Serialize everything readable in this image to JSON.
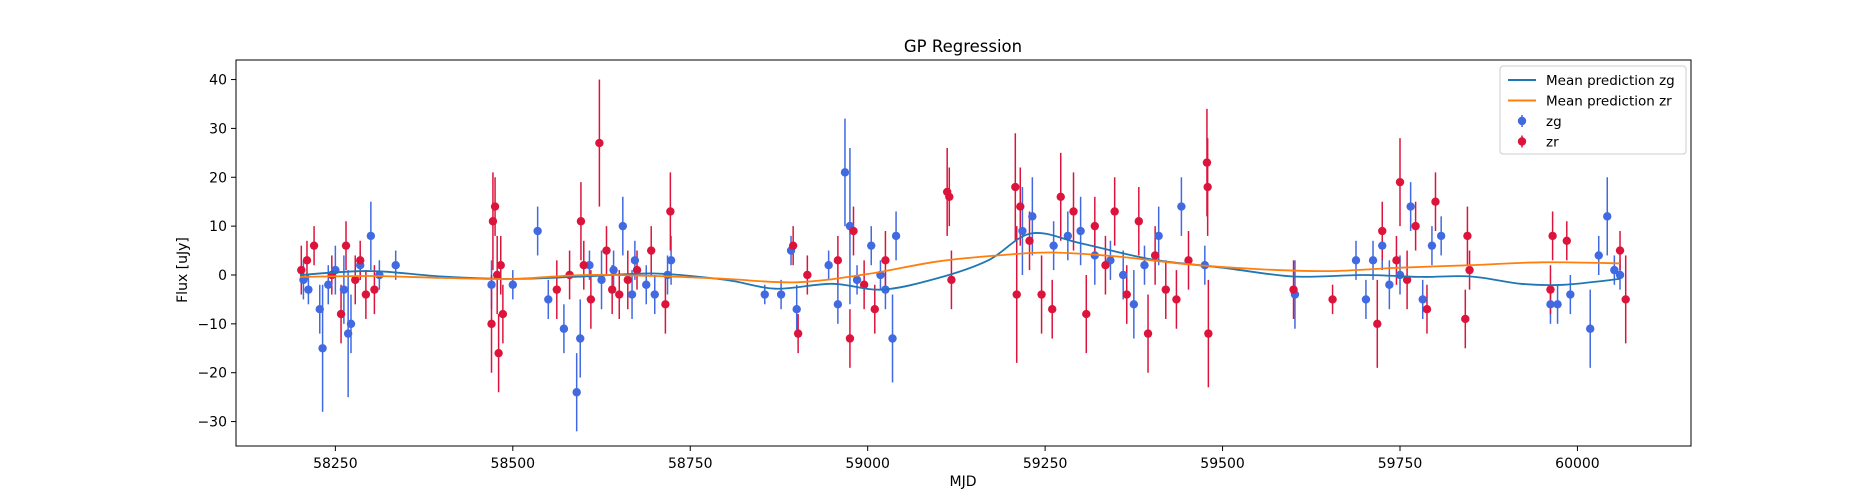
{
  "chart_data": {
    "type": "scatter",
    "title": "GP Regression",
    "xlabel": "MJD",
    "ylabel": "Flux [uJy]",
    "xlim": [
      58110,
      60160
    ],
    "ylim": [
      -35,
      44
    ],
    "xticks": [
      58250,
      58500,
      58750,
      59000,
      59250,
      59500,
      59750,
      60000
    ],
    "yticks": [
      -30,
      -20,
      -10,
      0,
      10,
      20,
      30,
      40
    ],
    "legend_position": "top-right",
    "grid": false,
    "lines": [
      {
        "name": "Mean prediction zg",
        "color": "#1f77b4",
        "x": [
          58200,
          58300,
          58400,
          58500,
          58600,
          58700,
          58800,
          58870,
          58950,
          59020,
          59100,
          59170,
          59230,
          59300,
          59400,
          59500,
          59600,
          59700,
          59780,
          59850,
          59920,
          59980,
          60060
        ],
        "y": [
          0.0,
          0.8,
          -0.3,
          -0.8,
          -0.3,
          0.3,
          -1.0,
          -2.8,
          -1.8,
          -3.0,
          -0.6,
          3.0,
          8.5,
          6.5,
          3.2,
          1.5,
          -0.3,
          0.0,
          -0.4,
          -0.3,
          -1.8,
          -2.0,
          -0.8
        ]
      },
      {
        "name": "Mean prediction zr",
        "color": "#ff7f0e",
        "x": [
          58200,
          58300,
          58400,
          58500,
          58600,
          58700,
          58800,
          58900,
          59000,
          59100,
          59200,
          59260,
          59350,
          59450,
          59550,
          59650,
          59750,
          59850,
          59950,
          60060
        ],
        "y": [
          -0.4,
          -0.2,
          -0.6,
          -0.8,
          0.0,
          -0.2,
          -0.8,
          -1.5,
          0.2,
          2.8,
          4.2,
          4.6,
          3.8,
          2.2,
          1.2,
          0.8,
          1.5,
          2.0,
          2.6,
          2.4
        ]
      }
    ],
    "series": [
      {
        "name": "zg",
        "color": "#4169e1",
        "points": [
          {
            "x": 58205,
            "y": -1,
            "err": 4
          },
          {
            "x": 58212,
            "y": -3,
            "err": 3
          },
          {
            "x": 58228,
            "y": -7,
            "err": 5
          },
          {
            "x": 58232,
            "y": -15,
            "err": 13
          },
          {
            "x": 58240,
            "y": -2,
            "err": 4
          },
          {
            "x": 58250,
            "y": 1,
            "err": 5
          },
          {
            "x": 58262,
            "y": -3,
            "err": 7
          },
          {
            "x": 58268,
            "y": -12,
            "err": 13
          },
          {
            "x": 58272,
            "y": -10,
            "err": 6
          },
          {
            "x": 58285,
            "y": 2,
            "err": 3
          },
          {
            "x": 58300,
            "y": 8,
            "err": 7
          },
          {
            "x": 58312,
            "y": 0,
            "err": 3
          },
          {
            "x": 58335,
            "y": 2,
            "err": 3
          },
          {
            "x": 58470,
            "y": -2,
            "err": 5
          },
          {
            "x": 58500,
            "y": -2,
            "err": 3
          },
          {
            "x": 58535,
            "y": 9,
            "err": 5
          },
          {
            "x": 58550,
            "y": -5,
            "err": 4
          },
          {
            "x": 58572,
            "y": -11,
            "err": 5
          },
          {
            "x": 58590,
            "y": -24,
            "err": 8
          },
          {
            "x": 58595,
            "y": -13,
            "err": 8
          },
          {
            "x": 58608,
            "y": 2,
            "err": 3
          },
          {
            "x": 58625,
            "y": -1,
            "err": 6
          },
          {
            "x": 58642,
            "y": 1,
            "err": 4
          },
          {
            "x": 58655,
            "y": 10,
            "err": 6
          },
          {
            "x": 58668,
            "y": -4,
            "err": 5
          },
          {
            "x": 58672,
            "y": 3,
            "err": 4
          },
          {
            "x": 58688,
            "y": -2,
            "err": 4
          },
          {
            "x": 58700,
            "y": -4,
            "err": 4
          },
          {
            "x": 58718,
            "y": 0,
            "err": 4
          },
          {
            "x": 58723,
            "y": 3,
            "err": 5
          },
          {
            "x": 58855,
            "y": -4,
            "err": 2
          },
          {
            "x": 58878,
            "y": -4,
            "err": 3
          },
          {
            "x": 58892,
            "y": 5,
            "err": 3
          },
          {
            "x": 58900,
            "y": -7,
            "err": 5
          },
          {
            "x": 58945,
            "y": 2,
            "err": 3
          },
          {
            "x": 58958,
            "y": -6,
            "err": 4
          },
          {
            "x": 58968,
            "y": 21,
            "err": 11
          },
          {
            "x": 58975,
            "y": 10,
            "err": 16
          },
          {
            "x": 58985,
            "y": -1,
            "err": 3
          },
          {
            "x": 59005,
            "y": 6,
            "err": 4
          },
          {
            "x": 59018,
            "y": 0,
            "err": 3
          },
          {
            "x": 59025,
            "y": -3,
            "err": 4
          },
          {
            "x": 59035,
            "y": -13,
            "err": 9
          },
          {
            "x": 59040,
            "y": 8,
            "err": 5
          },
          {
            "x": 59218,
            "y": 9,
            "err": 9
          },
          {
            "x": 59232,
            "y": 12,
            "err": 8
          },
          {
            "x": 59262,
            "y": 6,
            "err": 5
          },
          {
            "x": 59282,
            "y": 8,
            "err": 5
          },
          {
            "x": 59300,
            "y": 9,
            "err": 7
          },
          {
            "x": 59320,
            "y": 4,
            "err": 6
          },
          {
            "x": 59342,
            "y": 3,
            "err": 4
          },
          {
            "x": 59360,
            "y": 0,
            "err": 5
          },
          {
            "x": 59375,
            "y": -6,
            "err": 7
          },
          {
            "x": 59390,
            "y": 2,
            "err": 4
          },
          {
            "x": 59410,
            "y": 8,
            "err": 6
          },
          {
            "x": 59442,
            "y": 14,
            "err": 6
          },
          {
            "x": 59475,
            "y": 2,
            "err": 4
          },
          {
            "x": 59602,
            "y": -4,
            "err": 7
          },
          {
            "x": 59688,
            "y": 3,
            "err": 4
          },
          {
            "x": 59702,
            "y": -5,
            "err": 4
          },
          {
            "x": 59712,
            "y": 3,
            "err": 4
          },
          {
            "x": 59725,
            "y": 6,
            "err": 5
          },
          {
            "x": 59735,
            "y": -2,
            "err": 5
          },
          {
            "x": 59750,
            "y": 0,
            "err": 4
          },
          {
            "x": 59765,
            "y": 14,
            "err": 5
          },
          {
            "x": 59782,
            "y": -5,
            "err": 4
          },
          {
            "x": 59795,
            "y": 6,
            "err": 4
          },
          {
            "x": 59808,
            "y": 8,
            "err": 4
          },
          {
            "x": 59962,
            "y": -6,
            "err": 4
          },
          {
            "x": 59972,
            "y": -6,
            "err": 4
          },
          {
            "x": 59990,
            "y": -4,
            "err": 4
          },
          {
            "x": 60018,
            "y": -11,
            "err": 8
          },
          {
            "x": 60030,
            "y": 4,
            "err": 4
          },
          {
            "x": 60042,
            "y": 12,
            "err": 8
          },
          {
            "x": 60052,
            "y": 1,
            "err": 3
          },
          {
            "x": 60060,
            "y": 0,
            "err": 3
          }
        ]
      },
      {
        "name": "zr",
        "color": "#dc143c",
        "points": [
          {
            "x": 58202,
            "y": 1,
            "err": 5
          },
          {
            "x": 58210,
            "y": 3,
            "err": 4
          },
          {
            "x": 58220,
            "y": 6,
            "err": 4
          },
          {
            "x": 58245,
            "y": 0,
            "err": 4
          },
          {
            "x": 58258,
            "y": -8,
            "err": 6
          },
          {
            "x": 58265,
            "y": 6,
            "err": 5
          },
          {
            "x": 58278,
            "y": -1,
            "err": 5
          },
          {
            "x": 58285,
            "y": 3,
            "err": 4
          },
          {
            "x": 58293,
            "y": -4,
            "err": 5
          },
          {
            "x": 58305,
            "y": -3,
            "err": 5
          },
          {
            "x": 58470,
            "y": -10,
            "err": 10
          },
          {
            "x": 58472,
            "y": 11,
            "err": 10
          },
          {
            "x": 58475,
            "y": 14,
            "err": 6
          },
          {
            "x": 58478,
            "y": 0,
            "err": 8
          },
          {
            "x": 58480,
            "y": -16,
            "err": 8
          },
          {
            "x": 58483,
            "y": 2,
            "err": 6
          },
          {
            "x": 58486,
            "y": -8,
            "err": 6
          },
          {
            "x": 58562,
            "y": -3,
            "err": 6
          },
          {
            "x": 58580,
            "y": 0,
            "err": 5
          },
          {
            "x": 58596,
            "y": 11,
            "err": 8
          },
          {
            "x": 58600,
            "y": 2,
            "err": 5
          },
          {
            "x": 58610,
            "y": -5,
            "err": 6
          },
          {
            "x": 58622,
            "y": 27,
            "err": 13
          },
          {
            "x": 58632,
            "y": 5,
            "err": 5
          },
          {
            "x": 58640,
            "y": -3,
            "err": 5
          },
          {
            "x": 58650,
            "y": -4,
            "err": 5
          },
          {
            "x": 58662,
            "y": -1,
            "err": 6
          },
          {
            "x": 58675,
            "y": 1,
            "err": 4
          },
          {
            "x": 58695,
            "y": 5,
            "err": 5
          },
          {
            "x": 58715,
            "y": -6,
            "err": 6
          },
          {
            "x": 58722,
            "y": 13,
            "err": 8
          },
          {
            "x": 58895,
            "y": 6,
            "err": 4
          },
          {
            "x": 58902,
            "y": -12,
            "err": 4
          },
          {
            "x": 58915,
            "y": 0,
            "err": 4
          },
          {
            "x": 58958,
            "y": 3,
            "err": 5
          },
          {
            "x": 58975,
            "y": -13,
            "err": 6
          },
          {
            "x": 58980,
            "y": 9,
            "err": 5
          },
          {
            "x": 58995,
            "y": -2,
            "err": 5
          },
          {
            "x": 59010,
            "y": -7,
            "err": 5
          },
          {
            "x": 59025,
            "y": 3,
            "err": 6
          },
          {
            "x": 59112,
            "y": 17,
            "err": 9
          },
          {
            "x": 59115,
            "y": 16,
            "err": 6
          },
          {
            "x": 59118,
            "y": -1,
            "err": 6
          },
          {
            "x": 59208,
            "y": 18,
            "err": 11
          },
          {
            "x": 59210,
            "y": -4,
            "err": 14
          },
          {
            "x": 59215,
            "y": 14,
            "err": 8
          },
          {
            "x": 59228,
            "y": 7,
            "err": 6
          },
          {
            "x": 59245,
            "y": -4,
            "err": 8
          },
          {
            "x": 59260,
            "y": -7,
            "err": 6
          },
          {
            "x": 59272,
            "y": 16,
            "err": 9
          },
          {
            "x": 59290,
            "y": 13,
            "err": 8
          },
          {
            "x": 59308,
            "y": -8,
            "err": 8
          },
          {
            "x": 59320,
            "y": 10,
            "err": 6
          },
          {
            "x": 59335,
            "y": 2,
            "err": 6
          },
          {
            "x": 59348,
            "y": 13,
            "err": 7
          },
          {
            "x": 59365,
            "y": -4,
            "err": 6
          },
          {
            "x": 59382,
            "y": 11,
            "err": 7
          },
          {
            "x": 59395,
            "y": -12,
            "err": 8
          },
          {
            "x": 59405,
            "y": 4,
            "err": 6
          },
          {
            "x": 59420,
            "y": -3,
            "err": 6
          },
          {
            "x": 59435,
            "y": -5,
            "err": 6
          },
          {
            "x": 59452,
            "y": 3,
            "err": 6
          },
          {
            "x": 59478,
            "y": 23,
            "err": 11
          },
          {
            "x": 59479,
            "y": 18,
            "err": 10
          },
          {
            "x": 59480,
            "y": -12,
            "err": 11
          },
          {
            "x": 59600,
            "y": -3,
            "err": 6
          },
          {
            "x": 59655,
            "y": -5,
            "err": 3
          },
          {
            "x": 59718,
            "y": -10,
            "err": 9
          },
          {
            "x": 59725,
            "y": 9,
            "err": 6
          },
          {
            "x": 59745,
            "y": 3,
            "err": 5
          },
          {
            "x": 59750,
            "y": 19,
            "err": 9
          },
          {
            "x": 59760,
            "y": -1,
            "err": 6
          },
          {
            "x": 59772,
            "y": 10,
            "err": 5
          },
          {
            "x": 59788,
            "y": -7,
            "err": 5
          },
          {
            "x": 59800,
            "y": 15,
            "err": 6
          },
          {
            "x": 59842,
            "y": -9,
            "err": 6
          },
          {
            "x": 59845,
            "y": 8,
            "err": 6
          },
          {
            "x": 59848,
            "y": 1,
            "err": 4
          },
          {
            "x": 59962,
            "y": -3,
            "err": 5
          },
          {
            "x": 59965,
            "y": 8,
            "err": 5
          },
          {
            "x": 59985,
            "y": 7,
            "err": 4
          },
          {
            "x": 60060,
            "y": 5,
            "err": 4
          },
          {
            "x": 60068,
            "y": -5,
            "err": 9
          }
        ]
      }
    ]
  }
}
